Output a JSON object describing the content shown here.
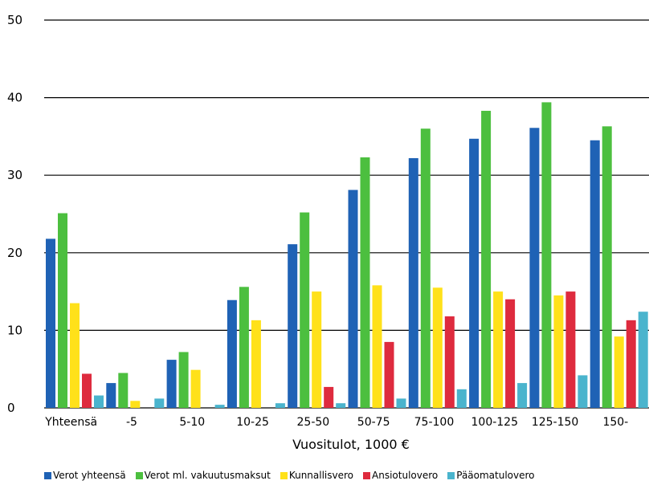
{
  "chart_data": {
    "type": "bar",
    "title": "",
    "xlabel": "Vuositulot, 1000 €",
    "ylabel": "",
    "ylim": [
      0,
      50
    ],
    "yticks": [
      0,
      10,
      20,
      30,
      40,
      50
    ],
    "grid": true,
    "legend_position": "bottom",
    "categories": [
      "Yhteensä",
      "-5",
      "5-10",
      "10-25",
      "25-50",
      "50-75",
      "75-100",
      "100-125",
      "125-150",
      "150-"
    ],
    "series": [
      {
        "name": "Verot yhteensä",
        "color": "#1f62b5",
        "values": [
          21.8,
          3.2,
          6.2,
          13.9,
          21.1,
          28.1,
          32.2,
          34.7,
          36.1,
          34.5
        ]
      },
      {
        "name": "Verot ml. vakuutusmaksut",
        "color": "#4cbf3f",
        "values": [
          25.1,
          4.5,
          7.2,
          15.6,
          25.2,
          32.3,
          36.0,
          38.3,
          39.4,
          36.3
        ]
      },
      {
        "name": "Kunnallisvero",
        "color": "#ffe11a",
        "values": [
          13.5,
          0.9,
          4.9,
          11.3,
          15.0,
          15.8,
          15.5,
          15.0,
          14.5,
          9.2
        ]
      },
      {
        "name": "Ansiotulovero",
        "color": "#de2b3e",
        "values": [
          4.4,
          0.0,
          0.0,
          0.0,
          2.7,
          8.5,
          11.8,
          14.0,
          15.0,
          11.3
        ]
      },
      {
        "name": "Pääomatulovero",
        "color": "#4ab4cd",
        "values": [
          1.6,
          1.2,
          0.4,
          0.6,
          0.6,
          1.2,
          2.4,
          3.2,
          4.2,
          12.4
        ]
      }
    ]
  }
}
